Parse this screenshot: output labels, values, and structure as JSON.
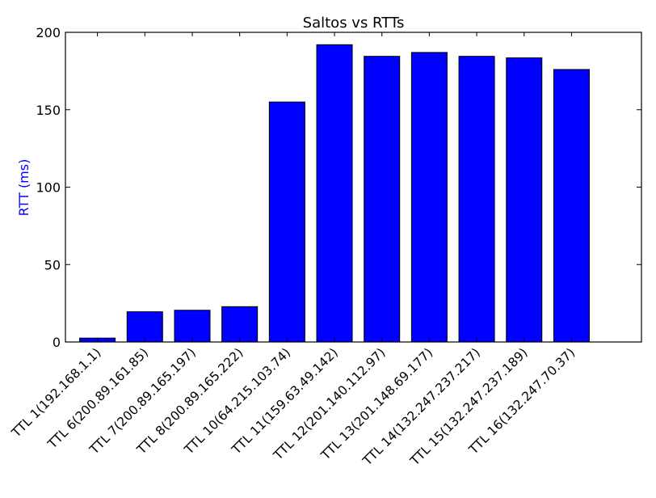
{
  "chart_data": {
    "type": "bar",
    "title": "Saltos vs RTTs",
    "xlabel": "",
    "ylabel": "RTT (ms)",
    "ylim": [
      0,
      200
    ],
    "yticks": [
      "0",
      "50",
      "100",
      "150",
      "200"
    ],
    "categories": [
      "TTL 1(192.168.1.1)",
      "TTL 6(200.89.161.85)",
      "TTL 7(200.89.165.197)",
      "TTL 8(200.89.165.222)",
      "TTL 10(64.215.103.74)",
      "TTL 11(159.63.49.142)",
      "TTL 12(201.140.112.97)",
      "TTL 13(201.148.69.177)",
      "TTL 14(132.247.237.217)",
      "TTL 15(132.247.237.189)",
      "TTL 16(132.247.70.37)"
    ],
    "values": [
      2.5,
      19.5,
      20.5,
      22.8,
      155,
      192,
      184.5,
      187,
      184.5,
      183.5,
      176
    ],
    "bar_color": "#0000ff",
    "ylabel_color": "#0000ff",
    "grid": false,
    "legend": "none"
  }
}
